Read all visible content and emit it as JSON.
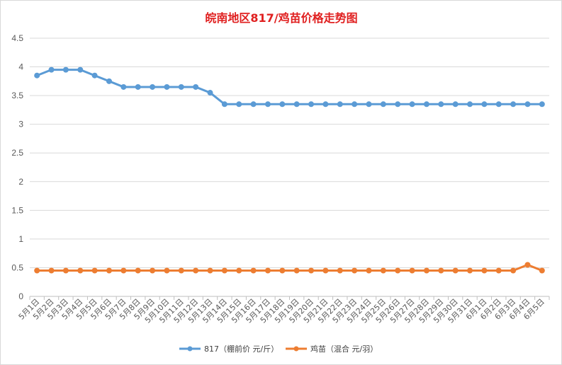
{
  "chart_data": {
    "type": "line",
    "title": "皖南地区817/鸡苗价格走势图",
    "xlabel": "",
    "ylabel": "",
    "ylim": [
      0,
      4.5
    ],
    "yticks": [
      0,
      0.5,
      1,
      1.5,
      2,
      2.5,
      3,
      3.5,
      4,
      4.5
    ],
    "grid": true,
    "legend_position": "bottom",
    "categories": [
      "5月1日",
      "5月2日",
      "5月3日",
      "5月4日",
      "5月5日",
      "5月6日",
      "5月7日",
      "5月8日",
      "5月9日",
      "5月10日",
      "5月11日",
      "5月12日",
      "5月13日",
      "5月14日",
      "5月15日",
      "5月16日",
      "5月17日",
      "5月18日",
      "5月19日",
      "5月20日",
      "5月21日",
      "5月22日",
      "5月23日",
      "5月24日",
      "5月25日",
      "5月26日",
      "5月27日",
      "5月28日",
      "5月29日",
      "5月30日",
      "5月31日",
      "6月1日",
      "6月2日",
      "6月3日",
      "6月4日",
      "6月5日"
    ],
    "series": [
      {
        "name": "817（棚前价 元/斤）",
        "color": "#5b9bd5",
        "values": [
          3.85,
          3.95,
          3.95,
          3.95,
          3.85,
          3.75,
          3.65,
          3.65,
          3.65,
          3.65,
          3.65,
          3.65,
          3.55,
          3.35,
          3.35,
          3.35,
          3.35,
          3.35,
          3.35,
          3.35,
          3.35,
          3.35,
          3.35,
          3.35,
          3.35,
          3.35,
          3.35,
          3.35,
          3.35,
          3.35,
          3.35,
          3.35,
          3.35,
          3.35,
          3.35,
          3.35
        ]
      },
      {
        "name": "鸡苗（混合 元/羽）",
        "color": "#ed7d31",
        "values": [
          0.45,
          0.45,
          0.45,
          0.45,
          0.45,
          0.45,
          0.45,
          0.45,
          0.45,
          0.45,
          0.45,
          0.45,
          0.45,
          0.45,
          0.45,
          0.45,
          0.45,
          0.45,
          0.45,
          0.45,
          0.45,
          0.45,
          0.45,
          0.45,
          0.45,
          0.45,
          0.45,
          0.45,
          0.45,
          0.45,
          0.45,
          0.45,
          0.45,
          0.45,
          0.55,
          0.45
        ]
      }
    ]
  }
}
